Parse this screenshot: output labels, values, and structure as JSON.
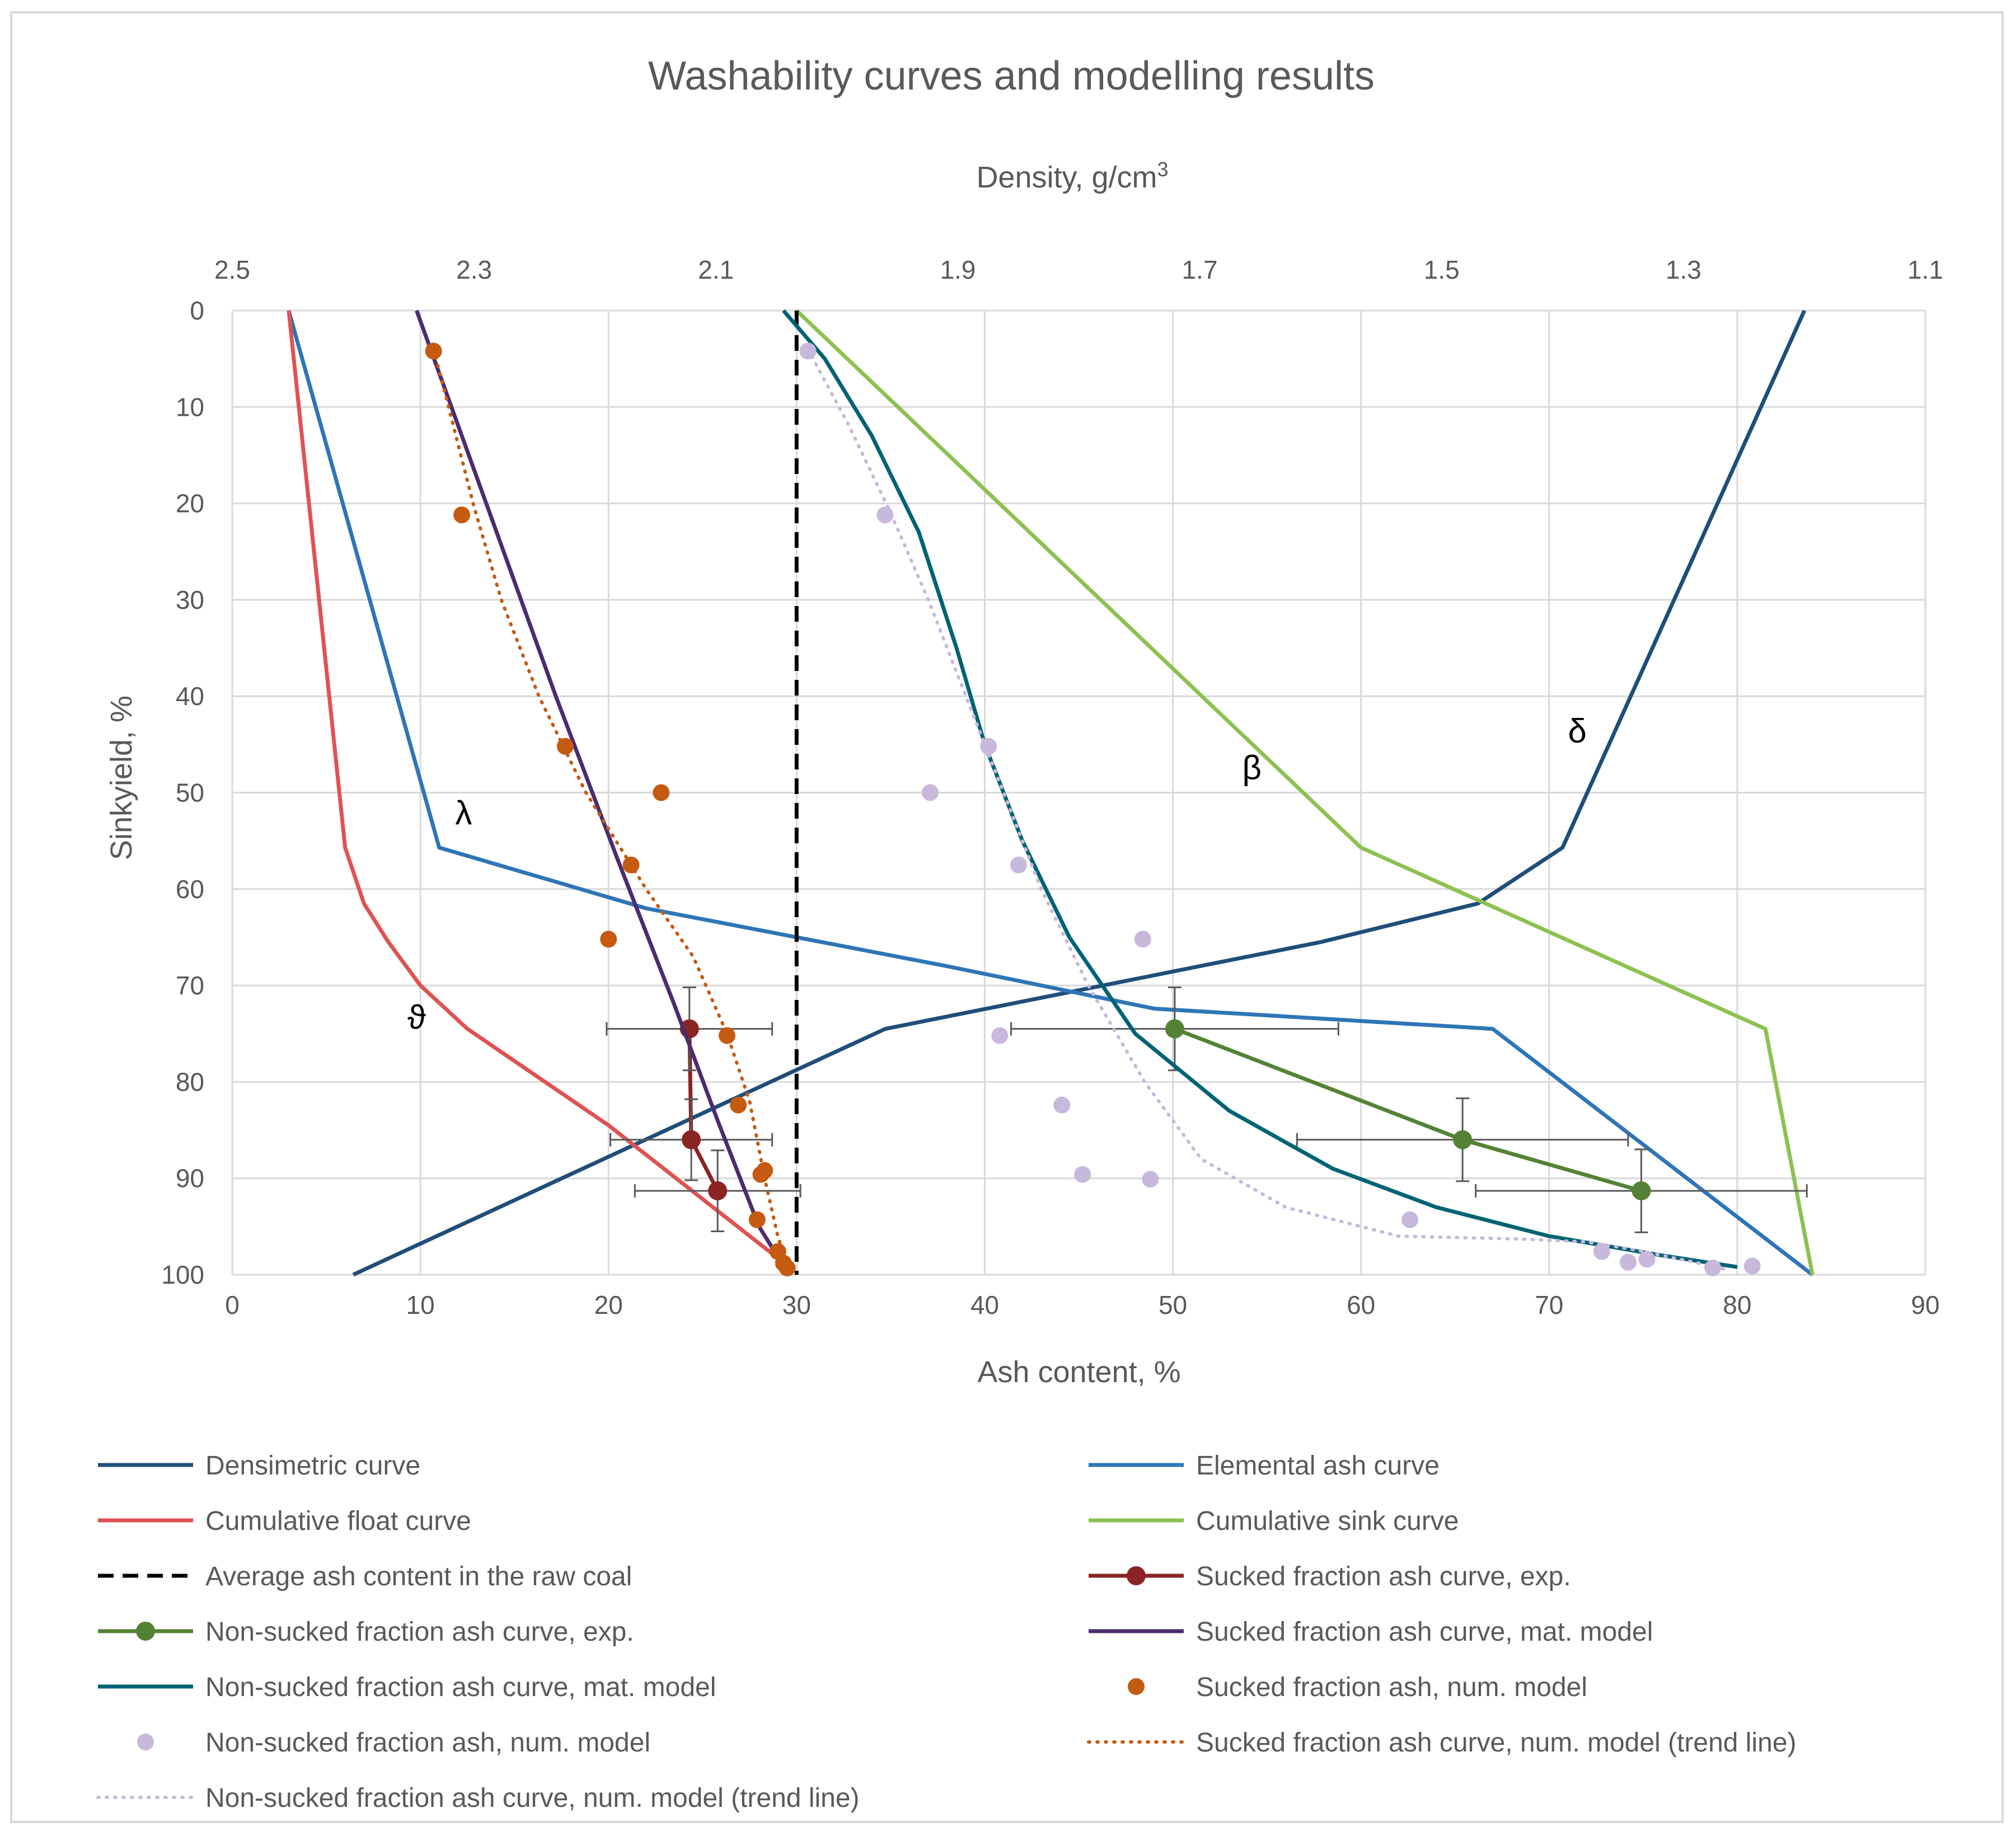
{
  "chart_data": {
    "type": "line",
    "title": "Washability curves and modelling results",
    "xlabel": "Ash content, %",
    "ylabel": "Sinkyield, %",
    "x2label": "Density, g/cm",
    "x2label_sup": "3",
    "xlim": [
      0,
      90
    ],
    "ylim": [
      0,
      100
    ],
    "y_inverted": true,
    "x2lim": [
      2.5,
      1.1
    ],
    "xticks": [
      "0",
      "10",
      "20",
      "30",
      "40",
      "50",
      "60",
      "70",
      "80",
      "90"
    ],
    "yticks": [
      "0",
      "10",
      "20",
      "30",
      "40",
      "50",
      "60",
      "70",
      "80",
      "90",
      "100"
    ],
    "x2ticks": [
      "2.5",
      "2.3",
      "2.1",
      "1.9",
      "1.7",
      "1.5",
      "1.3",
      "1.1"
    ],
    "grid": true,
    "legend_position": "bottom",
    "annotations": [
      {
        "text": "λ",
        "x": 12.3,
        "y": 53.3
      },
      {
        "text": "ϑ",
        "x": 9.8,
        "y": 74.5
      },
      {
        "text": "β",
        "x": 54.2,
        "y": 48.6
      },
      {
        "text": "δ",
        "x": 71.5,
        "y": 44.8
      }
    ],
    "series": [
      {
        "name": "Densimetric curve",
        "axis": "density",
        "style": "line",
        "color": "#1f4e79",
        "points": [
          [
            1.2,
            0
          ],
          [
            1.4,
            55.7
          ],
          [
            1.47,
            61.5
          ],
          [
            1.6,
            65.5
          ],
          [
            1.96,
            74.5
          ],
          [
            2.4,
            100
          ]
        ]
      },
      {
        "name": "Elemental ash curve",
        "style": "line",
        "color": "#2e75b6",
        "points": [
          [
            3,
            0
          ],
          [
            11,
            55.7
          ],
          [
            22,
            62
          ],
          [
            38,
            68
          ],
          [
            49,
            72.4
          ],
          [
            67,
            74.5
          ],
          [
            84,
            100
          ]
        ]
      },
      {
        "name": "Cumulative float curve",
        "style": "line",
        "color": "#e05252",
        "points": [
          [
            3,
            0
          ],
          [
            6,
            55.7
          ],
          [
            7,
            61.5
          ],
          [
            8.3,
            65.5
          ],
          [
            10,
            70
          ],
          [
            12.5,
            74.5
          ],
          [
            20,
            84.5
          ],
          [
            29.8,
            99.5
          ]
        ]
      },
      {
        "name": "Cumulative sink curve",
        "style": "line",
        "color": "#8dc152",
        "points": [
          [
            30,
            0
          ],
          [
            60,
            55.7
          ],
          [
            81.5,
            74.5
          ],
          [
            84,
            100
          ]
        ]
      },
      {
        "name": "Average ash content in the raw coal",
        "style": "dashed",
        "color": "#000000",
        "points": [
          [
            30,
            0
          ],
          [
            30,
            100
          ]
        ]
      },
      {
        "name": "Sucked fraction ash curve, exp.",
        "style": "line-marker",
        "color": "#8b2323",
        "points": [
          [
            24.3,
            74.5
          ],
          [
            24.4,
            86
          ],
          [
            25.8,
            91.3
          ]
        ],
        "xerr": [
          4.4,
          4.3,
          4.4
        ],
        "yerr": [
          4.3,
          4.2,
          4.2
        ]
      },
      {
        "name": "Non-sucked fraction ash curve, exp.",
        "style": "line-marker",
        "color": "#548235",
        "points": [
          [
            50.1,
            74.5
          ],
          [
            65.4,
            86
          ],
          [
            74.9,
            91.3
          ]
        ],
        "xerr": [
          8.7,
          8.8,
          8.8
        ],
        "yerr": [
          4.3,
          4.3,
          4.3
        ]
      },
      {
        "name": "Sucked fraction ash curve, mat. model",
        "style": "line",
        "color": "#4b2c6e",
        "points": [
          [
            9.8,
            0
          ],
          [
            13.5,
            20
          ],
          [
            17.2,
            40
          ],
          [
            20.5,
            57
          ],
          [
            23.5,
            72
          ],
          [
            25.8,
            84
          ],
          [
            28,
            95
          ],
          [
            29.6,
            100
          ]
        ]
      },
      {
        "name": "Non-sucked fraction ash curve, mat. model",
        "style": "line",
        "color": "#006374",
        "points": [
          [
            29.3,
            0
          ],
          [
            31.5,
            5
          ],
          [
            34,
            13
          ],
          [
            36.5,
            23
          ],
          [
            38.5,
            35
          ],
          [
            40,
            45
          ],
          [
            42,
            55
          ],
          [
            44.5,
            65
          ],
          [
            48,
            75
          ],
          [
            53,
            83
          ],
          [
            58.5,
            89
          ],
          [
            64,
            93
          ],
          [
            70,
            96
          ],
          [
            76,
            98
          ],
          [
            80,
            99.2
          ]
        ]
      },
      {
        "name": "Sucked fraction ash, num. model",
        "style": "marker",
        "color": "#c55a11",
        "points": [
          [
            10.7,
            4.2
          ],
          [
            12.2,
            21.2
          ],
          [
            17.7,
            45.2
          ],
          [
            22.8,
            50
          ],
          [
            21.2,
            57.5
          ],
          [
            20,
            65.2
          ],
          [
            26.3,
            75.2
          ],
          [
            26.9,
            82.4
          ],
          [
            28.1,
            89.6
          ],
          [
            28.3,
            89.2
          ],
          [
            27.9,
            94.3
          ],
          [
            29,
            97.6
          ],
          [
            29.3,
            98.8
          ],
          [
            29.5,
            99.3
          ]
        ]
      },
      {
        "name": "Non-sucked fraction ash, num. model",
        "style": "marker",
        "color": "#c8b8dc",
        "points": [
          [
            30.6,
            4.2
          ],
          [
            34.7,
            21.2
          ],
          [
            40.2,
            45.2
          ],
          [
            37.1,
            50
          ],
          [
            41.8,
            57.5
          ],
          [
            48.4,
            65.2
          ],
          [
            40.8,
            75.2
          ],
          [
            44.1,
            82.4
          ],
          [
            45.2,
            89.6
          ],
          [
            48.8,
            90.1
          ],
          [
            62.6,
            94.3
          ],
          [
            72.8,
            97.6
          ],
          [
            74.2,
            98.7
          ],
          [
            75.2,
            98.4
          ],
          [
            78.7,
            99.3
          ],
          [
            80.8,
            99.1
          ]
        ]
      },
      {
        "name": "Sucked fraction ash curve, num. model (trend line)",
        "style": "dotted",
        "color": "#c55a11",
        "points": [
          [
            10.7,
            4
          ],
          [
            11.5,
            10
          ],
          [
            12.8,
            20
          ],
          [
            14.3,
            30
          ],
          [
            16.3,
            40
          ],
          [
            18.8,
            50
          ],
          [
            22,
            60
          ],
          [
            24.5,
            67
          ],
          [
            26.3,
            75
          ],
          [
            27.5,
            82
          ],
          [
            28.3,
            90
          ],
          [
            29,
            96
          ],
          [
            29.6,
            99.5
          ]
        ]
      },
      {
        "name": "Non-sucked fraction ash curve, num. model (trend line)",
        "style": "dotted",
        "color": "#c8b8dc",
        "points": [
          [
            30.6,
            4
          ],
          [
            32.8,
            12
          ],
          [
            35,
            21
          ],
          [
            37,
            30
          ],
          [
            39,
            40
          ],
          [
            41,
            50
          ],
          [
            43,
            60
          ],
          [
            45.5,
            70
          ],
          [
            48.5,
            80
          ],
          [
            51.5,
            88
          ],
          [
            56,
            93
          ],
          [
            62,
            96
          ],
          [
            68.5,
            96.3
          ],
          [
            72,
            96.6
          ],
          [
            74.5,
            97.4
          ],
          [
            77.5,
            98.6
          ],
          [
            79.5,
            99.5
          ]
        ]
      }
    ]
  }
}
